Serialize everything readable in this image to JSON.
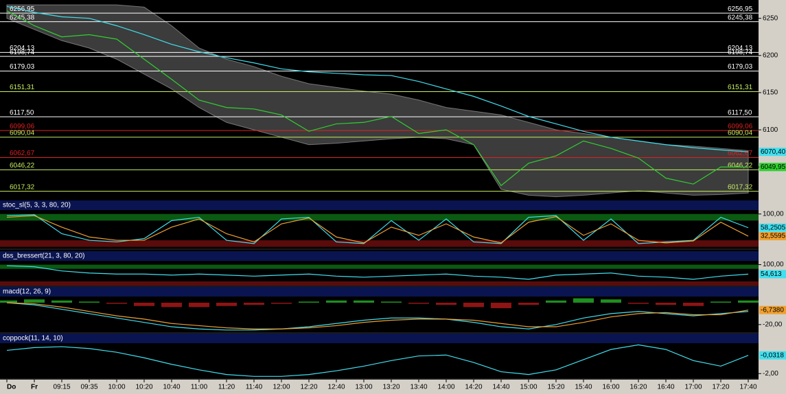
{
  "chart_data": [
    {
      "type": "line",
      "categories": [
        "Do",
        "Fr",
        "09:15",
        "09:35",
        "10:00",
        "10:20",
        "10:40",
        "11:00",
        "11:20",
        "11:40",
        "12:00",
        "12:20",
        "12:40",
        "13:00",
        "13:20",
        "13:40",
        "14:00",
        "14:20",
        "14:40",
        "15:00",
        "15:20",
        "15:40",
        "16:00",
        "16:20",
        "16:40",
        "17:00",
        "17:20",
        "17:40"
      ],
      "ylim": [
        6005,
        6270
      ],
      "yticks": [
        6250,
        6200,
        6150,
        6100,
        6050
      ],
      "band": {
        "color": "#3c3c3c",
        "upper": [
          6268,
          6268,
          6268,
          6268,
          6268,
          6265,
          6240,
          6210,
          6195,
          6185,
          6172,
          6162,
          6157,
          6152,
          6148,
          6140,
          6130,
          6125,
          6120,
          6110,
          6100,
          6095,
          6090,
          6085,
          6080,
          6078,
          6075,
          6072
        ],
        "lower": [
          6250,
          6235,
          6220,
          6210,
          6195,
          6175,
          6155,
          6130,
          6110,
          6100,
          6090,
          6080,
          6082,
          6085,
          6088,
          6090,
          6088,
          6080,
          6020,
          6012,
          6010,
          6012,
          6015,
          6018,
          6015,
          6012,
          6013,
          6015
        ]
      },
      "levels": [
        {
          "value": 6256.95,
          "label": "6256,95",
          "color": "#ffffff"
        },
        {
          "value": 6245.38,
          "label": "6245,38",
          "color": "#ffffff"
        },
        {
          "value": 6204.13,
          "label": "6204,13",
          "color": "#ffffff"
        },
        {
          "value": 6198.74,
          "label": "6198,74",
          "color": "#ffffff"
        },
        {
          "value": 6179.03,
          "label": "6179,03",
          "color": "#ffffff"
        },
        {
          "value": 6151.31,
          "label": "6151,31",
          "color": "#c8f060"
        },
        {
          "value": 6117.5,
          "label": "6117,50",
          "color": "#ffffff"
        },
        {
          "value": 6099.06,
          "label": "6099,06",
          "color": "#e02020"
        },
        {
          "value": 6090.04,
          "label": "6090,04",
          "color": "#c8f060"
        },
        {
          "value": 6062.67,
          "label": "6062,67",
          "color": "#e02020"
        },
        {
          "value": 6046.22,
          "label": "6046,22",
          "color": "#c8f060"
        },
        {
          "value": 6017.32,
          "label": "6017,32",
          "color": "#c8f060"
        }
      ],
      "series": [
        {
          "color": "#30d030",
          "values": [
            6260,
            6240,
            6225,
            6228,
            6222,
            6195,
            6168,
            6140,
            6130,
            6128,
            6120,
            6098,
            6108,
            6110,
            6118,
            6095,
            6100,
            6080,
            6025,
            6055,
            6065,
            6085,
            6075,
            6062,
            6035,
            6027,
            6050,
            6049.95
          ],
          "current": {
            "value": 6049.95,
            "label": "6049,95"
          }
        },
        {
          "color": "#40e0f0",
          "values": [
            6266,
            6258,
            6252,
            6250,
            6240,
            6228,
            6215,
            6205,
            6197,
            6190,
            6182,
            6178,
            6176,
            6174,
            6173,
            6165,
            6155,
            6145,
            6132,
            6118,
            6108,
            6098,
            6090,
            6085,
            6080,
            6076,
            6073,
            6070.4
          ],
          "current": {
            "value": 6070.4,
            "label": "6070,40"
          }
        }
      ]
    },
    {
      "type": "line",
      "title": "stoc_sl(5, 3, 3, 80, 20)",
      "ylim": [
        -5,
        110
      ],
      "yticks": [
        {
          "value": 100,
          "label": "100,00"
        }
      ],
      "zones": [
        {
          "from": 80,
          "to": 100,
          "color": "#0b5a12"
        },
        {
          "from": 0,
          "to": 20,
          "color": "#5a0b0b"
        }
      ],
      "series": [
        {
          "color": "#40e0f0",
          "values": [
            95,
            98,
            40,
            20,
            15,
            25,
            80,
            90,
            20,
            10,
            85,
            90,
            15,
            10,
            80,
            20,
            85,
            15,
            10,
            90,
            95,
            20,
            85,
            10,
            15,
            20,
            90,
            58.2505
          ],
          "current": {
            "value": 58.2505,
            "label": "58,2505"
          }
        },
        {
          "color": "#f0a030",
          "values": [
            90,
            95,
            60,
            30,
            20,
            20,
            60,
            85,
            40,
            15,
            70,
            88,
            30,
            12,
            60,
            35,
            70,
            30,
            12,
            75,
            92,
            35,
            70,
            20,
            12,
            18,
            75,
            32.5595
          ],
          "current": {
            "value": 32.5595,
            "label": "32,5595"
          }
        }
      ]
    },
    {
      "type": "line",
      "title": "dss_bressert(21, 3, 80, 20)",
      "ylim": [
        0,
        115
      ],
      "yticks": [
        {
          "value": 100,
          "label": "100,00"
        }
      ],
      "zones": [
        {
          "from": 80,
          "to": 100,
          "color": "#0b5a12"
        },
        {
          "from": 0,
          "to": 20,
          "color": "#5a0b0b"
        }
      ],
      "series": [
        {
          "color": "#40e0f0",
          "values": [
            95,
            90,
            70,
            60,
            55,
            55,
            50,
            55,
            50,
            45,
            50,
            55,
            45,
            40,
            45,
            50,
            55,
            45,
            40,
            30,
            50,
            55,
            60,
            45,
            40,
            30,
            45,
            54.613
          ],
          "current": {
            "value": 54.613,
            "label": "54,613"
          }
        }
      ]
    },
    {
      "type": "line",
      "title": "macd(12, 26, 9)",
      "ylim": [
        -27,
        5
      ],
      "yticks": [
        {
          "value": -20,
          "label": "-20,00"
        }
      ],
      "histogram": {
        "up_color": "#1f8f1f",
        "down_color": "#8f1414",
        "values": [
          2,
          3,
          2,
          1,
          -1,
          -3,
          -4,
          -4,
          -3,
          -2,
          -1,
          1,
          2,
          2,
          1,
          -1,
          -2,
          -4,
          -5,
          -2,
          2,
          4,
          3,
          -1,
          -2,
          -3,
          1,
          2
        ]
      },
      "series": [
        {
          "color": "#40e0f0",
          "values": [
            0,
            -2,
            -6,
            -10,
            -14,
            -18,
            -22,
            -24,
            -25,
            -25,
            -24,
            -22,
            -19,
            -16,
            -14,
            -14,
            -15,
            -18,
            -22,
            -24,
            -20,
            -14,
            -10,
            -8,
            -10,
            -12,
            -10,
            -8
          ]
        },
        {
          "color": "#f0a030",
          "values": [
            0,
            -1,
            -4,
            -8,
            -12,
            -15,
            -19,
            -21,
            -23,
            -24,
            -24,
            -23,
            -21,
            -18,
            -16,
            -15,
            -15,
            -16,
            -19,
            -22,
            -22,
            -18,
            -13,
            -10,
            -9,
            -11,
            -11,
            -6.738
          ],
          "current": {
            "value": -6.738,
            "label": "-6,7380"
          }
        }
      ]
    },
    {
      "type": "line",
      "title": "coppock(11, 14, 10)",
      "ylim": [
        -2.5,
        1.2
      ],
      "yticks": [
        {
          "value": -2,
          "label": "-2,00"
        }
      ],
      "series": [
        {
          "color": "#40e0f0",
          "values": [
            0.5,
            0.8,
            0.9,
            0.7,
            0.3,
            -0.3,
            -1,
            -1.6,
            -2.1,
            -2.3,
            -2.3,
            -2.1,
            -1.7,
            -1.2,
            -0.6,
            -0.1,
            0,
            -0.8,
            -1.8,
            -2.1,
            -1.6,
            -0.5,
            0.6,
            1.1,
            0.6,
            -0.6,
            -1.2,
            -0.0318
          ],
          "current": {
            "value": -0.0318,
            "label": "-0,0318"
          }
        }
      ]
    }
  ]
}
